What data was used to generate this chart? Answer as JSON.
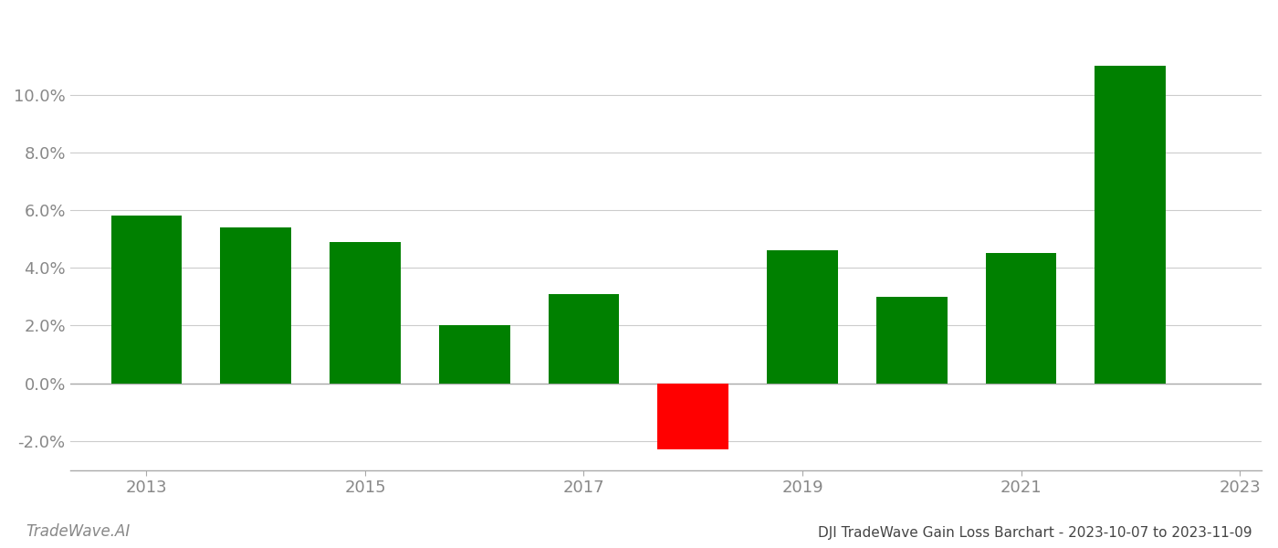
{
  "years": [
    2013,
    2014,
    2015,
    2016,
    2017,
    2018,
    2019,
    2020,
    2021,
    2022
  ],
  "values": [
    0.058,
    0.054,
    0.049,
    0.02,
    0.031,
    -0.023,
    0.046,
    0.03,
    0.045,
    0.11
  ],
  "bar_color_positive": "#008000",
  "bar_color_negative": "#ff0000",
  "title": "DJI TradeWave Gain Loss Barchart - 2023-10-07 to 2023-11-09",
  "watermark": "TradeWave.AI",
  "ylim_min": -0.03,
  "ylim_max": 0.128,
  "yticks": [
    -0.02,
    0.0,
    0.02,
    0.04,
    0.06,
    0.08,
    0.1
  ],
  "xticks": [
    2013,
    2015,
    2017,
    2019,
    2021,
    2023
  ],
  "xlim_min": 2012.3,
  "xlim_max": 2023.2,
  "background_color": "#ffffff",
  "grid_color": "#cccccc",
  "tick_label_color": "#888888",
  "title_color": "#444444",
  "watermark_color": "#888888",
  "title_fontsize": 11,
  "watermark_fontsize": 12,
  "tick_fontsize": 13,
  "bar_width": 0.65
}
